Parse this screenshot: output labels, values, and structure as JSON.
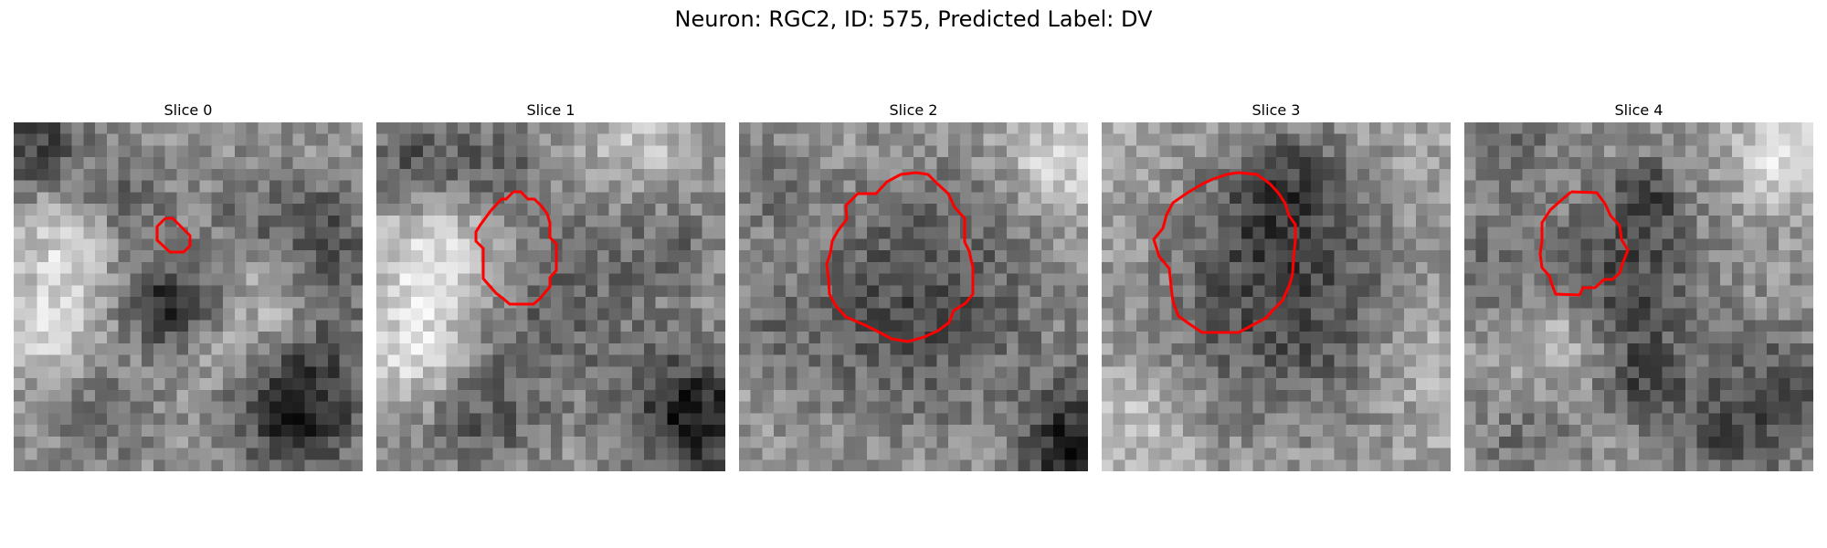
{
  "figure": {
    "title": "Neuron: RGC2, ID: 575, Predicted Label: DV",
    "neuron_type": "RGC2",
    "id": 575,
    "predicted_label": "DV"
  },
  "panels": [
    {
      "title": "Slice 0"
    },
    {
      "title": "Slice 1"
    },
    {
      "title": "Slice 2"
    },
    {
      "title": "Slice 3"
    },
    {
      "title": "Slice 4"
    }
  ],
  "style": {
    "contour_color": "#ff0000",
    "colormap": "gray"
  }
}
